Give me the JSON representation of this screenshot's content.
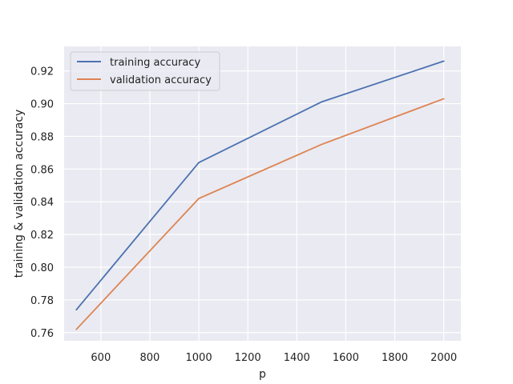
{
  "chart_data": {
    "type": "line",
    "title": "",
    "xlabel": "p",
    "ylabel": "training & validation accuracy",
    "x": [
      500,
      1000,
      1500,
      2000
    ],
    "series": [
      {
        "name": "training accuracy",
        "values": [
          0.774,
          0.864,
          0.901,
          0.926
        ],
        "color": "#4c72b0"
      },
      {
        "name": "validation accuracy",
        "values": [
          0.762,
          0.842,
          0.875,
          0.903
        ],
        "color": "#dd8452"
      }
    ],
    "xlim": [
      450,
      2070
    ],
    "ylim": [
      0.755,
      0.935
    ],
    "xticks": [
      600,
      800,
      1000,
      1200,
      1400,
      1600,
      1800,
      2000
    ],
    "xtick_labels": [
      "600",
      "800",
      "1000",
      "1200",
      "1400",
      "1600",
      "1800",
      "2000"
    ],
    "yticks": [
      0.76,
      0.78,
      0.8,
      0.82,
      0.84,
      0.86,
      0.88,
      0.9,
      0.92
    ],
    "ytick_labels": [
      "0.76",
      "0.78",
      "0.80",
      "0.82",
      "0.84",
      "0.86",
      "0.88",
      "0.90",
      "0.92"
    ],
    "grid": true,
    "legend_position": "top-left",
    "style": {
      "background": "#eaeaf2",
      "grid_color": "#ffffff"
    }
  }
}
